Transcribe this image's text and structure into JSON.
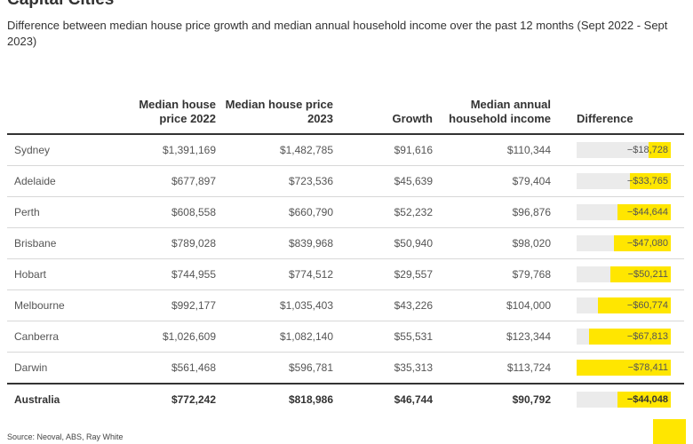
{
  "header": {
    "title": "Capital Cities",
    "subtitle": "Difference between median house price growth and median annual household income over the past 12 months (Sept 2022 - Sept 2023)"
  },
  "table": {
    "columns": [
      {
        "key": "city",
        "label": ""
      },
      {
        "key": "price_2022",
        "label": "Median house price 2022"
      },
      {
        "key": "price_2023",
        "label": "Median house price 2023"
      },
      {
        "key": "growth",
        "label": "Growth"
      },
      {
        "key": "income",
        "label": "Median annual household income"
      },
      {
        "key": "difference",
        "label": "Difference"
      }
    ],
    "diff_scale_max": 78411,
    "rows": [
      {
        "city": "Sydney",
        "price_2022": "$1,391,169",
        "price_2023": "$1,482,785",
        "growth": "$91,616",
        "income": "$110,344",
        "difference": "−$18,728",
        "difference_value": -18728
      },
      {
        "city": "Adelaide",
        "price_2022": "$677,897",
        "price_2023": "$723,536",
        "growth": "$45,639",
        "income": "$79,404",
        "difference": "−$33,765",
        "difference_value": -33765
      },
      {
        "city": "Perth",
        "price_2022": "$608,558",
        "price_2023": "$660,790",
        "growth": "$52,232",
        "income": "$96,876",
        "difference": "−$44,644",
        "difference_value": -44644
      },
      {
        "city": "Brisbane",
        "price_2022": "$789,028",
        "price_2023": "$839,968",
        "growth": "$50,940",
        "income": "$98,020",
        "difference": "−$47,080",
        "difference_value": -47080
      },
      {
        "city": "Hobart",
        "price_2022": "$744,955",
        "price_2023": "$774,512",
        "growth": "$29,557",
        "income": "$79,768",
        "difference": "−$50,211",
        "difference_value": -50211
      },
      {
        "city": "Melbourne",
        "price_2022": "$992,177",
        "price_2023": "$1,035,403",
        "growth": "$43,226",
        "income": "$104,000",
        "difference": "−$60,774",
        "difference_value": -60774
      },
      {
        "city": "Canberra",
        "price_2022": "$1,026,609",
        "price_2023": "$1,082,140",
        "growth": "$55,531",
        "income": "$123,344",
        "difference": "−$67,813",
        "difference_value": -67813
      },
      {
        "city": "Darwin",
        "price_2022": "$561,468",
        "price_2023": "$596,781",
        "growth": "$35,313",
        "income": "$113,724",
        "difference": "−$78,411",
        "difference_value": -78411
      }
    ],
    "total": {
      "city": "Australia",
      "price_2022": "$772,242",
      "price_2023": "$818,986",
      "growth": "$46,744",
      "income": "$90,792",
      "difference": "−$44,048",
      "difference_value": -44048
    }
  },
  "footer": {
    "source": "Source: Neoval, ABS, Ray White"
  },
  "colors": {
    "accent": "#ffe600",
    "bar_track": "#ebebeb"
  }
}
